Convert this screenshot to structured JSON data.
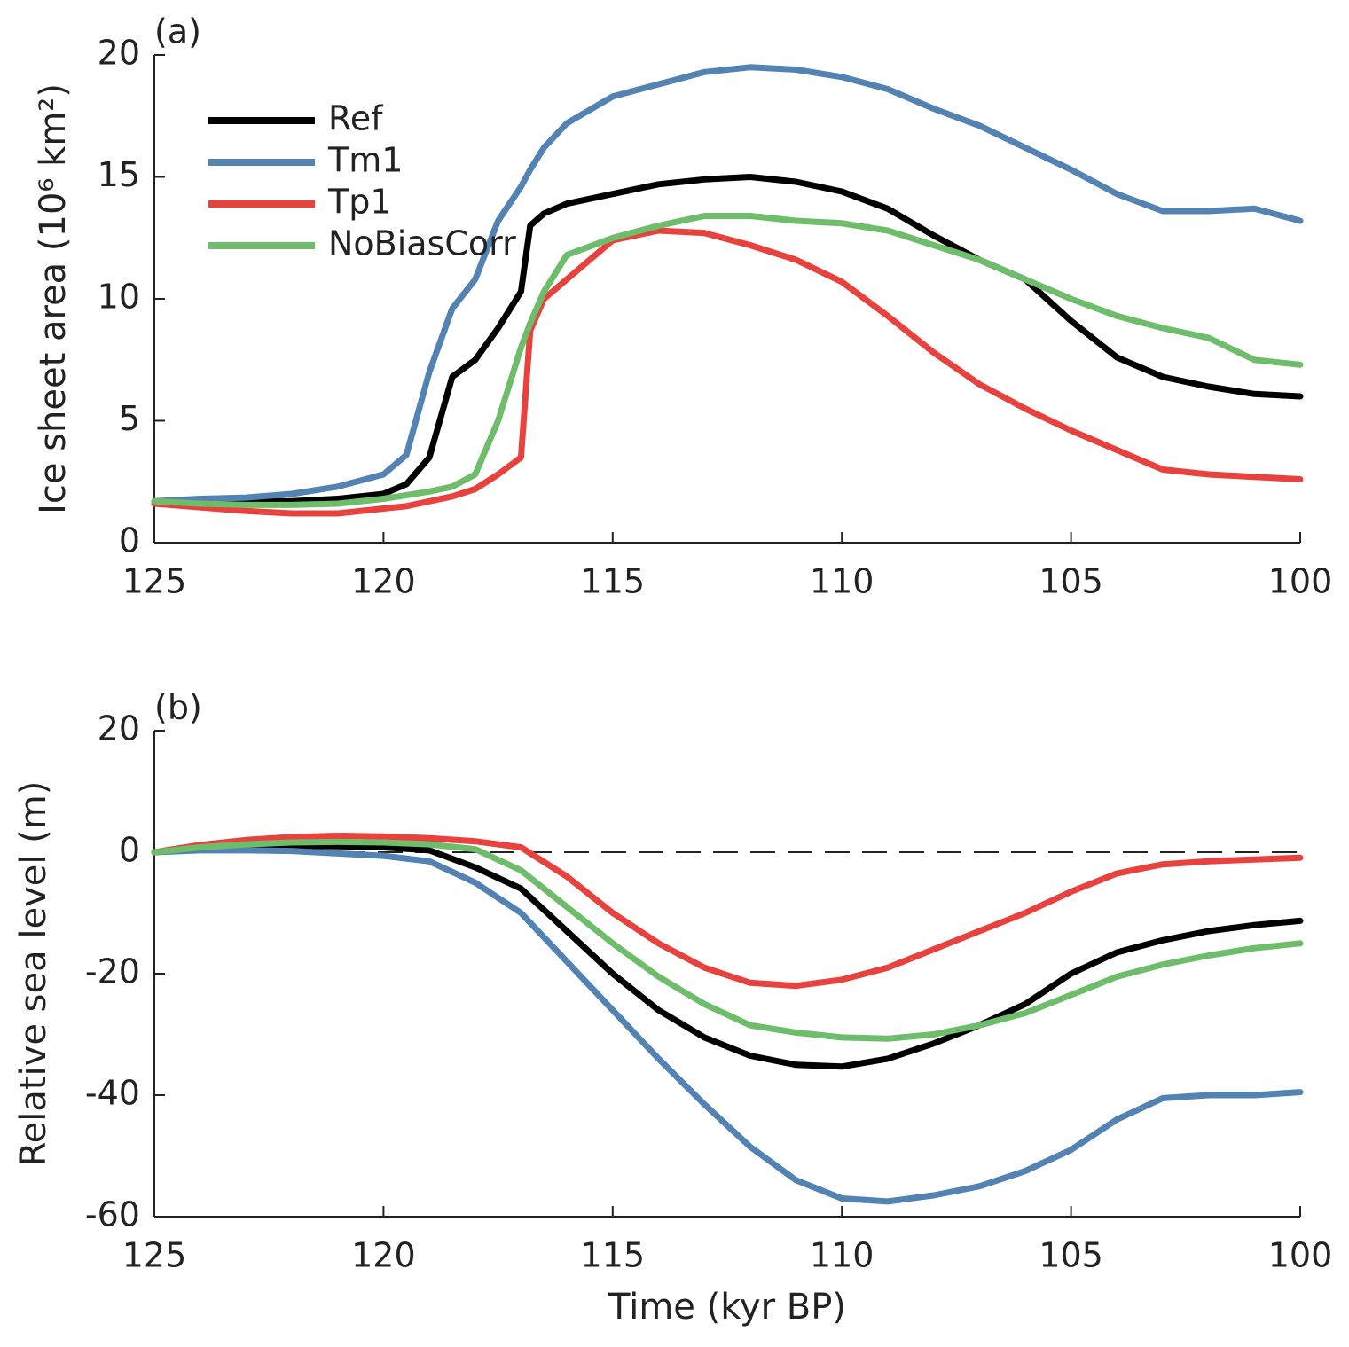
{
  "chart_data": [
    {
      "type": "line",
      "panel_label": "(a)",
      "ylabel": "Ice sheet area (10⁶ km²)",
      "x": [
        125,
        124,
        123,
        122,
        121,
        120,
        119.5,
        119,
        118.5,
        118,
        117.5,
        117,
        116.8,
        116.5,
        116,
        115,
        114,
        113,
        112,
        111,
        110,
        109,
        108,
        107,
        106,
        105,
        104,
        103,
        102,
        101,
        100
      ],
      "xlim": [
        125,
        100
      ],
      "xticks": [
        125,
        120,
        115,
        110,
        105,
        100
      ],
      "ylim": [
        0,
        20
      ],
      "yticks": [
        0,
        5,
        10,
        15,
        20
      ],
      "grid": false,
      "legend": "upper left",
      "series": [
        {
          "name": "Ref",
          "color": "#000000",
          "values": [
            1.7,
            1.6,
            1.7,
            1.7,
            1.8,
            2.0,
            2.4,
            3.5,
            6.8,
            7.5,
            8.8,
            10.3,
            13.0,
            13.5,
            13.9,
            14.3,
            14.7,
            14.9,
            15.0,
            14.8,
            14.4,
            13.7,
            12.6,
            11.6,
            10.8,
            9.1,
            7.6,
            6.8,
            6.4,
            6.1,
            6.0
          ]
        },
        {
          "name": "Tm1",
          "color": "#5383b3",
          "values": [
            1.7,
            1.8,
            1.85,
            2.0,
            2.3,
            2.8,
            3.6,
            7.0,
            9.6,
            10.8,
            13.2,
            14.6,
            15.3,
            16.2,
            17.2,
            18.3,
            18.8,
            19.3,
            19.5,
            19.4,
            19.1,
            18.6,
            17.8,
            17.1,
            16.2,
            15.3,
            14.3,
            13.6,
            13.6,
            13.7,
            13.2
          ]
        },
        {
          "name": "Tp1",
          "color": "#e8423f",
          "values": [
            1.6,
            1.45,
            1.3,
            1.2,
            1.2,
            1.4,
            1.5,
            1.7,
            1.9,
            2.2,
            2.8,
            3.5,
            8.7,
            10.0,
            10.8,
            12.4,
            12.8,
            12.7,
            12.2,
            11.6,
            10.7,
            9.3,
            7.8,
            6.5,
            5.5,
            4.6,
            3.8,
            3.0,
            2.8,
            2.7,
            2.6
          ]
        },
        {
          "name": "NoBiasCorr",
          "color": "#6dbd6b",
          "values": [
            1.7,
            1.6,
            1.55,
            1.55,
            1.6,
            1.8,
            1.95,
            2.1,
            2.3,
            2.8,
            5.0,
            8.0,
            9.0,
            10.3,
            11.8,
            12.5,
            13.0,
            13.4,
            13.4,
            13.2,
            13.1,
            12.8,
            12.2,
            11.6,
            10.8,
            10.0,
            9.3,
            8.8,
            8.4,
            7.5,
            7.3
          ]
        }
      ]
    },
    {
      "type": "line",
      "panel_label": "(b)",
      "ylabel": "Relative sea level (m)",
      "xlabel": "Time (kyr BP)",
      "x": [
        125,
        124,
        123,
        122,
        121,
        120,
        119,
        118,
        117,
        116,
        115,
        114,
        113,
        112,
        111,
        110,
        109,
        108,
        107,
        106,
        105,
        104,
        103,
        102,
        101,
        100
      ],
      "xlim": [
        125,
        100
      ],
      "xticks": [
        125,
        120,
        115,
        110,
        105,
        100
      ],
      "ylim": [
        -60,
        20
      ],
      "yticks": [
        -60,
        -40,
        -20,
        0,
        20
      ],
      "grid": false,
      "reference_line": 0,
      "series": [
        {
          "name": "Ref",
          "color": "#000000",
          "values": [
            0,
            0.5,
            0.8,
            1,
            1,
            0.8,
            0.3,
            -2.5,
            -6,
            -13,
            -20,
            -26,
            -30.5,
            -33.5,
            -35,
            -35.3,
            -34,
            -31.5,
            -28.5,
            -25,
            -20,
            -16.5,
            -14.5,
            -13,
            -12,
            -11.3
          ]
        },
        {
          "name": "Tm1",
          "color": "#5383b3",
          "values": [
            0,
            0.3,
            0.3,
            0.2,
            -0.2,
            -0.6,
            -1.5,
            -5,
            -10,
            -18,
            -26,
            -34,
            -41.5,
            -48.5,
            -54,
            -57,
            -57.5,
            -56.5,
            -55,
            -52.5,
            -49,
            -44,
            -40.5,
            -40,
            -40,
            -39.5
          ]
        },
        {
          "name": "Tp1",
          "color": "#e8423f",
          "values": [
            0,
            1.2,
            2,
            2.5,
            2.7,
            2.6,
            2.3,
            1.8,
            0.8,
            -4,
            -10,
            -15,
            -19,
            -21.5,
            -22,
            -21,
            -19,
            -16,
            -13,
            -10,
            -6.5,
            -3.5,
            -2,
            -1.5,
            -1.2,
            -0.9
          ]
        },
        {
          "name": "NoBiasCorr",
          "color": "#6dbd6b",
          "values": [
            0,
            0.8,
            1.3,
            1.6,
            1.7,
            1.6,
            1.3,
            0.5,
            -3,
            -9,
            -15,
            -20.5,
            -25,
            -28.5,
            -29.7,
            -30.5,
            -30.7,
            -30,
            -28.5,
            -26.5,
            -23.5,
            -20.5,
            -18.5,
            -17,
            -15.8,
            -15
          ]
        }
      ]
    }
  ]
}
